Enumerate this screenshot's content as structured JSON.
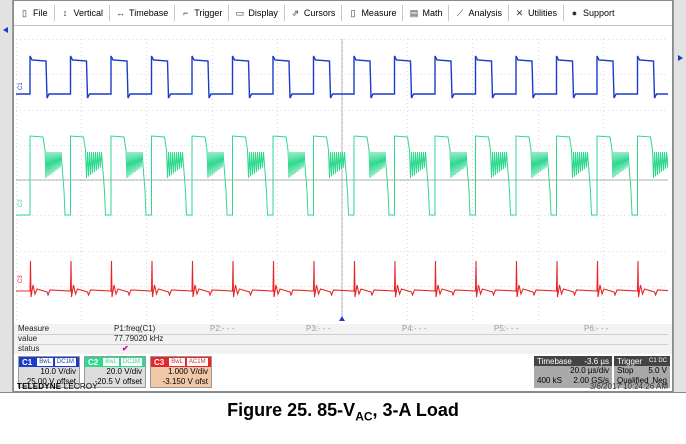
{
  "menu": [
    {
      "icon": "file-icon",
      "glyph": "▯",
      "label": "File"
    },
    {
      "icon": "vertical-icon",
      "glyph": "↕",
      "label": "Vertical"
    },
    {
      "icon": "timebase-icon",
      "glyph": "↔",
      "label": "Timebase"
    },
    {
      "icon": "trigger-icon",
      "glyph": "⌐",
      "label": "Trigger"
    },
    {
      "icon": "display-icon",
      "glyph": "▭",
      "label": "Display"
    },
    {
      "icon": "cursors-icon",
      "glyph": "⇗",
      "label": "Cursors"
    },
    {
      "icon": "measure-icon",
      "glyph": "▯",
      "label": "Measure"
    },
    {
      "icon": "math-icon",
      "glyph": "▤",
      "label": "Math"
    },
    {
      "icon": "analysis-icon",
      "glyph": "⟋",
      "label": "Analysis"
    },
    {
      "icon": "utilities-icon",
      "glyph": "✕",
      "label": "Utilities"
    },
    {
      "icon": "support-icon",
      "glyph": "●",
      "label": "Support"
    }
  ],
  "waveforms": {
    "c1_label": "C1",
    "c2_label": "C2",
    "c3_label": "C3",
    "colors": {
      "c1": "#1a3cc8",
      "c2": "#2fd88f",
      "c3": "#e8262a",
      "grid": "#bfbfbf"
    }
  },
  "measure": {
    "title": "Measure",
    "value_label": "value",
    "status_label": "status",
    "p1_name": "P1:freq(C1)",
    "p1_value": "77.79020 kHz",
    "p1_status": "✔",
    "p2": "P2:- - -",
    "p3": "P3:- - -",
    "p4": "P4:- - -",
    "p5": "P5:- - -",
    "p6": "P6:- - -"
  },
  "channels": [
    {
      "name": "C1",
      "badge1": "BwL",
      "badge2": "DC1M",
      "scale": "10.0 V/div",
      "offset": "25.00 V offset",
      "color": "#1a3cc8",
      "bg": "#dcdcdc"
    },
    {
      "name": "C2",
      "badge1": "BwL",
      "badge2": "DC1M",
      "scale": "20.0 V/div",
      "offset": "-20.5 V offset",
      "color": "#2fd88f",
      "bg": "#dcdcdc"
    },
    {
      "name": "C3",
      "badge1": "BwL",
      "badge2": "AC1M",
      "scale": "1.000 V/div",
      "offset": "-3.150 V ofst",
      "color": "#e8262a",
      "bg": "#f0c8a8"
    }
  ],
  "timebase": {
    "label": "Timebase",
    "delay": "-3.6 µs",
    "per_div": "20.0 µs/div",
    "samples": "400 kS",
    "rate": "2.00 GS/s"
  },
  "trigger": {
    "label": "Trigger",
    "source": "C1 DC",
    "mode": "Stop",
    "level": "5.0 V",
    "state": "Qualified",
    "slope": "Neg"
  },
  "brand": {
    "name": "TELEDYNE",
    "suffix": "LECROY"
  },
  "timestamp": "3/6/2017 10:24:26 AM",
  "caption": {
    "prefix": "Figure 25. 85-V",
    "sub": "AC",
    "suffix": ", 3-A Load"
  }
}
